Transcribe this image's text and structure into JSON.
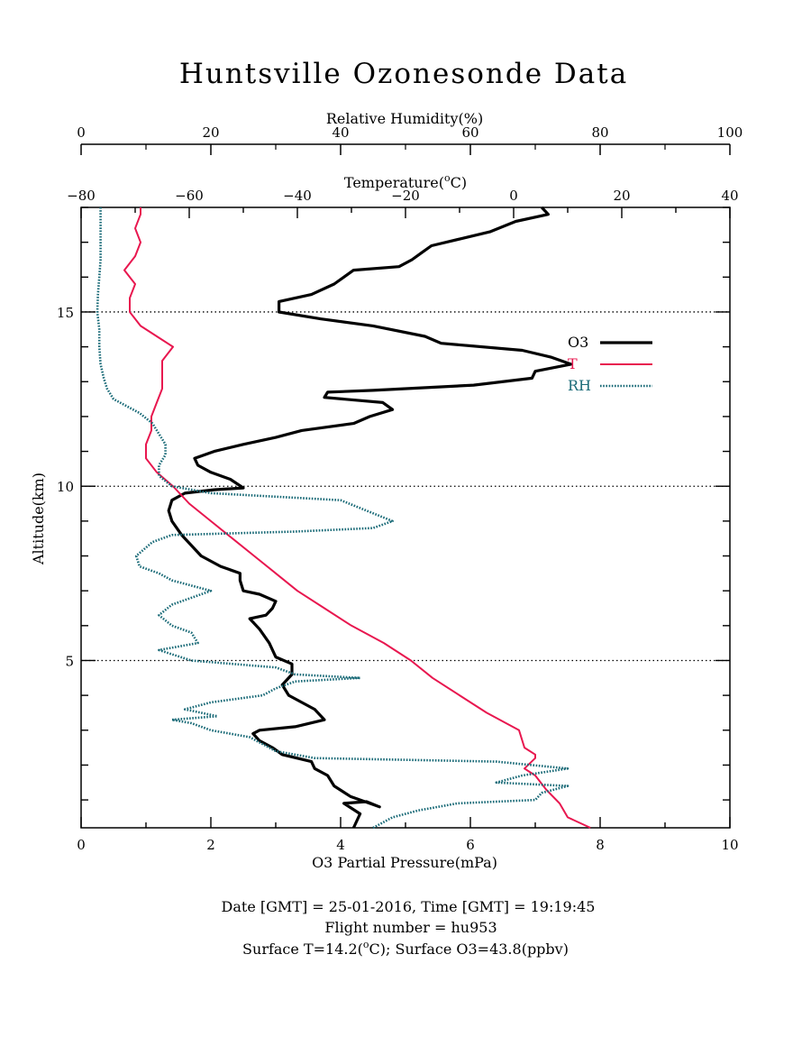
{
  "chart_data": {
    "type": "line",
    "title": "Huntsville Ozonesonde Data",
    "xlabel": "O3 Partial Pressure(mPa)",
    "ylabel": "Altitude(km)",
    "axes": {
      "o3": {
        "label": "O3 Partial Pressure(mPa)",
        "range": [
          0,
          10
        ],
        "ticks": [
          0,
          2,
          4,
          6,
          8,
          10
        ]
      },
      "temperature": {
        "label_prefix": "Temperature(",
        "label_sup": "o",
        "label_suffix": "C)",
        "range": [
          -80,
          40
        ],
        "ticks": [
          -80,
          -60,
          -40,
          -20,
          0,
          20,
          40
        ]
      },
      "humidity": {
        "label": "Relative Humidity(%)",
        "range": [
          0,
          100
        ],
        "ticks": [
          0,
          20,
          40,
          60,
          80,
          100
        ]
      },
      "altitude": {
        "label": "Altitude(km)",
        "range": [
          0.2,
          18
        ],
        "ticks": [
          5,
          10,
          15
        ],
        "gridlines": [
          5,
          10,
          15
        ]
      }
    },
    "legend_position": "right",
    "series": [
      {
        "name": "O3",
        "axis": "o3",
        "color": "#000000",
        "points": [
          [
            4.2,
            0.2
          ],
          [
            4.3,
            0.6
          ],
          [
            4.05,
            0.9
          ],
          [
            4.4,
            0.95
          ],
          [
            4.6,
            0.8
          ],
          [
            4.15,
            1.1
          ],
          [
            3.9,
            1.4
          ],
          [
            3.8,
            1.7
          ],
          [
            3.6,
            1.9
          ],
          [
            3.55,
            2.1
          ],
          [
            3.1,
            2.3
          ],
          [
            2.95,
            2.5
          ],
          [
            2.75,
            2.7
          ],
          [
            2.65,
            2.9
          ],
          [
            2.75,
            3.0
          ],
          [
            3.3,
            3.1
          ],
          [
            3.75,
            3.3
          ],
          [
            3.6,
            3.6
          ],
          [
            3.4,
            3.8
          ],
          [
            3.2,
            4.0
          ],
          [
            3.1,
            4.3
          ],
          [
            3.25,
            4.6
          ],
          [
            3.25,
            4.9
          ],
          [
            3.0,
            5.1
          ],
          [
            2.9,
            5.5
          ],
          [
            2.75,
            5.9
          ],
          [
            2.6,
            6.2
          ],
          [
            2.85,
            6.3
          ],
          [
            2.95,
            6.5
          ],
          [
            3.0,
            6.7
          ],
          [
            2.75,
            6.9
          ],
          [
            2.5,
            7.0
          ],
          [
            2.45,
            7.3
          ],
          [
            2.45,
            7.5
          ],
          [
            2.15,
            7.7
          ],
          [
            1.85,
            8.0
          ],
          [
            1.7,
            8.3
          ],
          [
            1.55,
            8.6
          ],
          [
            1.4,
            9.0
          ],
          [
            1.35,
            9.3
          ],
          [
            1.4,
            9.6
          ],
          [
            1.6,
            9.8
          ],
          [
            2.05,
            9.9
          ],
          [
            2.5,
            9.95
          ],
          [
            2.3,
            10.2
          ],
          [
            2.0,
            10.4
          ],
          [
            1.8,
            10.6
          ],
          [
            1.75,
            10.8
          ],
          [
            2.05,
            11.0
          ],
          [
            2.5,
            11.2
          ],
          [
            3.0,
            11.4
          ],
          [
            3.4,
            11.6
          ],
          [
            4.2,
            11.8
          ],
          [
            4.45,
            12.0
          ],
          [
            4.8,
            12.2
          ],
          [
            4.65,
            12.4
          ],
          [
            3.75,
            12.55
          ],
          [
            3.8,
            12.7
          ],
          [
            4.5,
            12.75
          ],
          [
            6.05,
            12.9
          ],
          [
            6.95,
            13.1
          ],
          [
            7.0,
            13.3
          ],
          [
            7.55,
            13.5
          ],
          [
            7.25,
            13.7
          ],
          [
            6.8,
            13.9
          ],
          [
            5.55,
            14.1
          ],
          [
            5.3,
            14.3
          ],
          [
            4.5,
            14.6
          ],
          [
            3.7,
            14.8
          ],
          [
            3.05,
            15.0
          ],
          [
            3.05,
            15.3
          ],
          [
            3.55,
            15.5
          ],
          [
            3.9,
            15.8
          ],
          [
            4.05,
            16.0
          ],
          [
            4.2,
            16.2
          ],
          [
            4.9,
            16.3
          ],
          [
            5.1,
            16.5
          ],
          [
            5.25,
            16.7
          ],
          [
            5.4,
            16.9
          ],
          [
            5.85,
            17.1
          ],
          [
            6.3,
            17.3
          ],
          [
            6.7,
            17.6
          ],
          [
            7.2,
            17.8
          ],
          [
            7.1,
            18.0
          ]
        ]
      },
      {
        "name": "T",
        "axis": "temperature",
        "color": "#e8174f",
        "points": [
          [
            14.2,
            0.2
          ],
          [
            10,
            0.5
          ],
          [
            8.5,
            0.9
          ],
          [
            6,
            1.3
          ],
          [
            4,
            1.7
          ],
          [
            2,
            1.9
          ],
          [
            4,
            2.2
          ],
          [
            4,
            2.3
          ],
          [
            2,
            2.5
          ],
          [
            1,
            3.0
          ],
          [
            -5,
            3.5
          ],
          [
            -10,
            4.0
          ],
          [
            -15,
            4.5
          ],
          [
            -19,
            5.0
          ],
          [
            -24,
            5.5
          ],
          [
            -30,
            6.0
          ],
          [
            -35,
            6.5
          ],
          [
            -40,
            7.0
          ],
          [
            -44,
            7.5
          ],
          [
            -48,
            8.0
          ],
          [
            -52,
            8.5
          ],
          [
            -56,
            9.0
          ],
          [
            -60,
            9.5
          ],
          [
            -63,
            10.0
          ],
          [
            -66,
            10.4
          ],
          [
            -68,
            10.8
          ],
          [
            -68,
            11.2
          ],
          [
            -67,
            11.6
          ],
          [
            -67,
            12.0
          ],
          [
            -66,
            12.4
          ],
          [
            -65,
            12.8
          ],
          [
            -65,
            13.2
          ],
          [
            -65,
            13.6
          ],
          [
            -63,
            14.0
          ],
          [
            -66,
            14.3
          ],
          [
            -69,
            14.6
          ],
          [
            -71,
            15.0
          ],
          [
            -71,
            15.4
          ],
          [
            -70,
            15.8
          ],
          [
            -72,
            16.2
          ],
          [
            -70,
            16.6
          ],
          [
            -69,
            17.0
          ],
          [
            -70,
            17.4
          ],
          [
            -69,
            17.8
          ],
          [
            -69,
            18.0
          ]
        ]
      },
      {
        "name": "RH",
        "axis": "humidity",
        "color": "#1b6b78",
        "points": [
          [
            45,
            0.2
          ],
          [
            48,
            0.5
          ],
          [
            52,
            0.7
          ],
          [
            58,
            0.9
          ],
          [
            70,
            1.0
          ],
          [
            71,
            1.2
          ],
          [
            75,
            1.4
          ],
          [
            64,
            1.5
          ],
          [
            68,
            1.7
          ],
          [
            75,
            1.9
          ],
          [
            64,
            2.1
          ],
          [
            36,
            2.2
          ],
          [
            30,
            2.4
          ],
          [
            28,
            2.6
          ],
          [
            26,
            2.8
          ],
          [
            20,
            3.0
          ],
          [
            17,
            3.2
          ],
          [
            14,
            3.3
          ],
          [
            21,
            3.4
          ],
          [
            16,
            3.6
          ],
          [
            20,
            3.8
          ],
          [
            28,
            4.0
          ],
          [
            30,
            4.2
          ],
          [
            33,
            4.4
          ],
          [
            43,
            4.5
          ],
          [
            33,
            4.6
          ],
          [
            30,
            4.8
          ],
          [
            17,
            5.0
          ],
          [
            12,
            5.3
          ],
          [
            18,
            5.5
          ],
          [
            17,
            5.8
          ],
          [
            14,
            6.0
          ],
          [
            12,
            6.3
          ],
          [
            14,
            6.6
          ],
          [
            20,
            7.0
          ],
          [
            14,
            7.3
          ],
          [
            12,
            7.5
          ],
          [
            9,
            7.7
          ],
          [
            8.5,
            8.0
          ],
          [
            11,
            8.4
          ],
          [
            14,
            8.6
          ],
          [
            33,
            8.7
          ],
          [
            45,
            8.8
          ],
          [
            48,
            9.0
          ],
          [
            44,
            9.3
          ],
          [
            40,
            9.6
          ],
          [
            20,
            9.8
          ],
          [
            14,
            10.0
          ],
          [
            12,
            10.3
          ],
          [
            12,
            10.6
          ],
          [
            13,
            10.9
          ],
          [
            13,
            11.2
          ],
          [
            12,
            11.5
          ],
          [
            11,
            11.8
          ],
          [
            9,
            12.1
          ],
          [
            7,
            12.3
          ],
          [
            5,
            12.5
          ],
          [
            4,
            12.8
          ],
          [
            3.5,
            13.1
          ],
          [
            3,
            13.5
          ],
          [
            2.8,
            14.0
          ],
          [
            2.8,
            14.5
          ],
          [
            2.5,
            15.0
          ],
          [
            2.6,
            15.5
          ],
          [
            2.8,
            16.0
          ],
          [
            3,
            16.5
          ],
          [
            3,
            17.0
          ],
          [
            3,
            17.5
          ],
          [
            3,
            18.0
          ]
        ]
      }
    ]
  },
  "footer": {
    "line1": "Date [GMT] = 25-01-2016,  Time [GMT] = 19:19:45",
    "line2": "Flight number = hu953",
    "line3_prefix": "Surface T=14.2(",
    "line3_sup": "o",
    "line3_suffix": "C); Surface O3=43.8(ppbv)"
  }
}
